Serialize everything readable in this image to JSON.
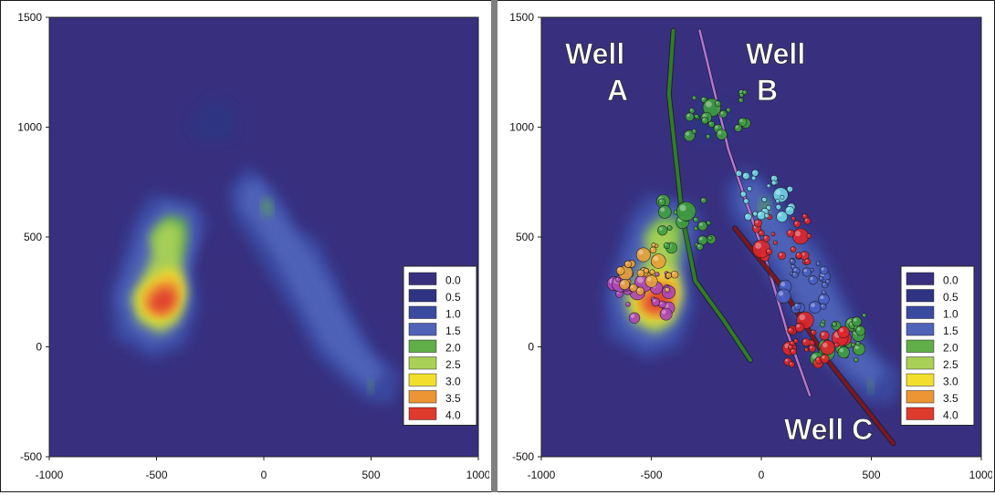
{
  "colors": {
    "levels": [
      "#38307f",
      "#2e3483",
      "#3a4aa0",
      "#4f63b8",
      "#5fae47",
      "#a9d157",
      "#f2df2c",
      "#ed9535",
      "#e03a2d"
    ],
    "background": "#38307f",
    "well_a": "#2f7d24",
    "well_b": "#b476cf",
    "well_c": "#7a1820"
  },
  "chart_data": [
    {
      "type": "heatmap",
      "title": "",
      "xlabel": "",
      "ylabel": "",
      "xlim": [
        -1000,
        1000
      ],
      "ylim": [
        -500,
        1500
      ],
      "x_ticks": [
        "-1000",
        "-500",
        "0",
        "500",
        "1000"
      ],
      "y_ticks": [
        "-500",
        "0",
        "500",
        "1000",
        "1500"
      ],
      "legend": {
        "position": "bottom-right",
        "entries": [
          "0.0",
          "0.5",
          "1.0",
          "1.5",
          "2.0",
          "2.5",
          "3.0",
          "3.5",
          "4.0"
        ]
      },
      "grid": false,
      "hotspots": [
        {
          "x": -480,
          "y": 200,
          "value": 4.0
        },
        {
          "x": -420,
          "y": 310,
          "value": 3.5
        },
        {
          "x": -420,
          "y": 540,
          "value": 2.5
        },
        {
          "x": 20,
          "y": 620,
          "value": 2.0
        },
        {
          "x": 330,
          "y": 200,
          "value": 1.5
        },
        {
          "x": 500,
          "y": -180,
          "value": 2.0
        },
        {
          "x": -220,
          "y": 1000,
          "value": 1.0
        }
      ]
    },
    {
      "type": "heatmap",
      "title": "",
      "xlabel": "",
      "ylabel": "",
      "xlim": [
        -1000,
        1000
      ],
      "ylim": [
        -500,
        1500
      ],
      "x_ticks": [
        "-1000",
        "-500",
        "0",
        "500",
        "1000"
      ],
      "y_ticks": [
        "-500",
        "0",
        "500",
        "1000",
        "1500"
      ],
      "legend": {
        "position": "bottom-right",
        "entries": [
          "0.0",
          "0.5",
          "1.0",
          "1.5",
          "2.0",
          "2.5",
          "3.0",
          "3.5",
          "4.0"
        ]
      },
      "grid": false,
      "hotspots": [
        {
          "x": -480,
          "y": 200,
          "value": 4.0
        },
        {
          "x": -420,
          "y": 310,
          "value": 3.5
        },
        {
          "x": -420,
          "y": 540,
          "value": 2.5
        },
        {
          "x": 20,
          "y": 620,
          "value": 2.0
        },
        {
          "x": 330,
          "y": 200,
          "value": 1.5
        },
        {
          "x": 500,
          "y": -180,
          "value": 2.0
        },
        {
          "x": -220,
          "y": 1000,
          "value": 1.0
        }
      ],
      "wells": [
        {
          "label_lines": [
            "Well",
            "A"
          ],
          "points": [
            [
              -400,
              1440
            ],
            [
              -420,
              1150
            ],
            [
              -360,
              600
            ],
            [
              -300,
              300
            ],
            [
              -170,
              120
            ],
            [
              -50,
              -60
            ]
          ]
        },
        {
          "label_lines": [
            "Well",
            "B"
          ],
          "points": [
            [
              -280,
              1440
            ],
            [
              -150,
              900
            ],
            [
              20,
              400
            ],
            [
              120,
              60
            ],
            [
              220,
              -220
            ]
          ]
        },
        {
          "label_lines": [
            "Well C"
          ],
          "points": [
            [
              -120,
              540
            ],
            [
              80,
              290
            ],
            [
              300,
              -60
            ],
            [
              600,
              -440
            ]
          ]
        }
      ],
      "event_clusters": [
        {
          "color": "#3f9e3f",
          "x": -200,
          "y": 1060
        },
        {
          "color": "#3f9e3f",
          "x": 340,
          "y": 50
        },
        {
          "color": "#3f9e3f",
          "x": -330,
          "y": 560
        },
        {
          "color": "#e0262b",
          "x": 100,
          "y": 490
        },
        {
          "color": "#e0262b",
          "x": 250,
          "y": 20
        },
        {
          "color": "#b046b8",
          "x": -540,
          "y": 240
        },
        {
          "color": "#6fd6e6",
          "x": 10,
          "y": 700
        },
        {
          "color": "#4a5fc4",
          "x": 180,
          "y": 280
        },
        {
          "color": "#e8a23a",
          "x": -520,
          "y": 360
        }
      ]
    }
  ]
}
